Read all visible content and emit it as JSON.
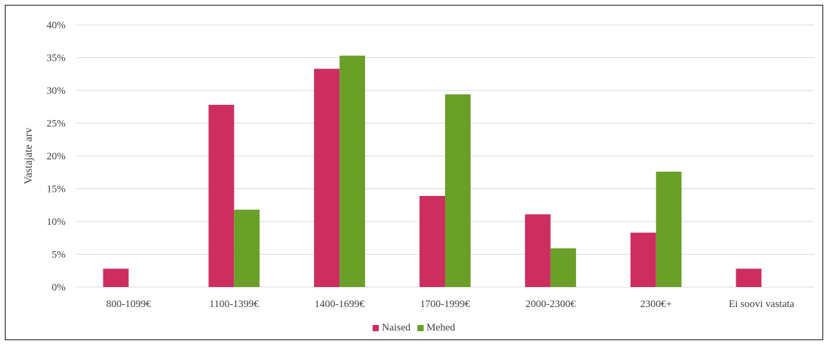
{
  "chart_data": {
    "type": "bar",
    "title": "",
    "xlabel": "",
    "ylabel": "Vastajate arv",
    "categories": [
      "800-1099€",
      "1100-1399€",
      "1400-1699€",
      "1700-1999€",
      "2000-2300€",
      "2300€+",
      "Ei soovi vastata"
    ],
    "series": [
      {
        "name": "Naised",
        "color": "#cc2e60",
        "values": [
          2.8,
          27.8,
          33.3,
          13.9,
          11.1,
          8.3,
          2.8
        ]
      },
      {
        "name": "Mehed",
        "color": "#6a9f28",
        "values": [
          0,
          11.8,
          35.3,
          29.4,
          5.9,
          17.6,
          0
        ]
      }
    ],
    "ylim": [
      0,
      40
    ],
    "yticks": [
      "0%",
      "5%",
      "10%",
      "15%",
      "20%",
      "25%",
      "30%",
      "35%",
      "40%"
    ],
    "grid": true,
    "legend_position": "bottom"
  }
}
